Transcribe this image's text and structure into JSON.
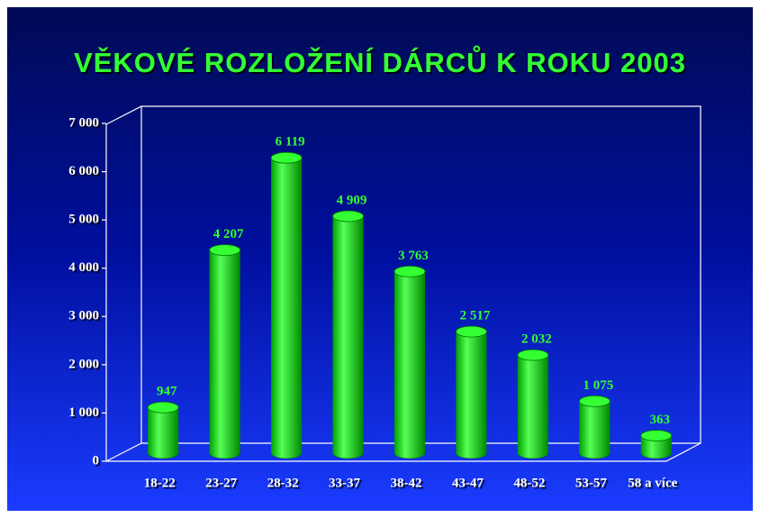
{
  "chart_data": {
    "type": "bar",
    "title": "VĚKOVÉ ROZLOŽENÍ DÁRCŮ K ROKU 2003",
    "categories": [
      "18-22",
      "23-27",
      "28-32",
      "33-37",
      "38-42",
      "43-47",
      "48-52",
      "53-57",
      "58 a více"
    ],
    "values": [
      947,
      4207,
      6119,
      4909,
      3763,
      2517,
      2032,
      1075,
      363
    ],
    "value_labels": [
      "947",
      "4 207",
      "6 119",
      "4 909",
      "3 763",
      "2 517",
      "2 032",
      "1 075",
      "363"
    ],
    "color": "#00e000",
    "ylim": [
      0,
      7000
    ],
    "yticks": [
      0,
      {
        "value": 1000,
        "label": "1 000"
      },
      {
        "value": 2000,
        "label": "2 000"
      },
      {
        "value": 3000,
        "label": "3 000"
      },
      {
        "value": 4000,
        "label": "4 000"
      },
      {
        "value": 5000,
        "label": "5 000"
      },
      {
        "value": 6000,
        "label": "6 000"
      },
      {
        "value": 7000,
        "label": "7 000"
      }
    ],
    "grid": false
  }
}
